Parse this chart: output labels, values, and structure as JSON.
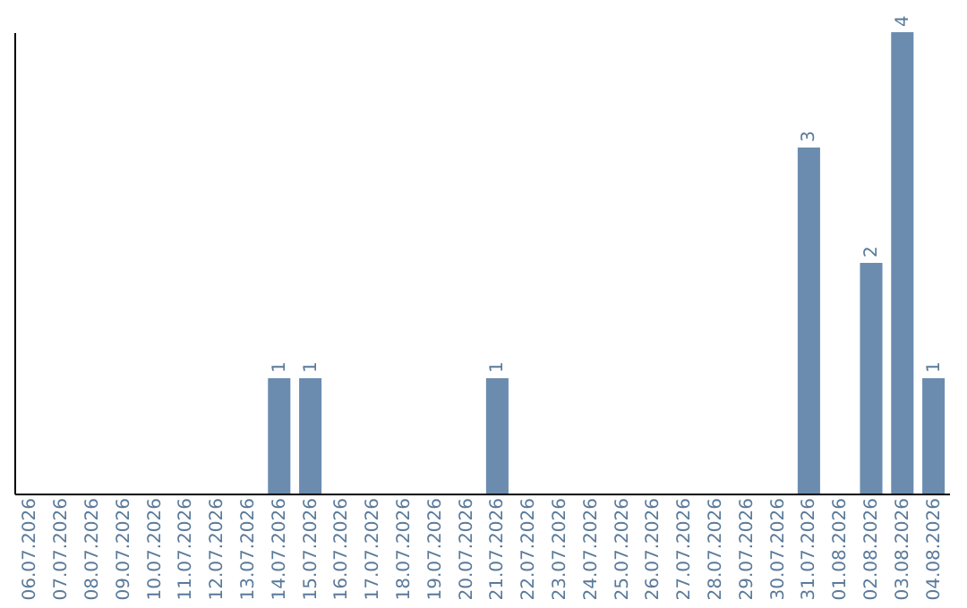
{
  "chart_data": {
    "type": "bar",
    "categories": [
      "06.07.2026",
      "07.07.2026",
      "08.07.2026",
      "09.07.2026",
      "10.07.2026",
      "11.07.2026",
      "12.07.2026",
      "13.07.2026",
      "14.07.2026",
      "15.07.2026",
      "16.07.2026",
      "17.07.2026",
      "18.07.2026",
      "19.07.2026",
      "20.07.2026",
      "21.07.2026",
      "22.07.2026",
      "23.07.2026",
      "24.07.2026",
      "25.07.2026",
      "26.07.2026",
      "27.07.2026",
      "28.07.2026",
      "29.07.2026",
      "30.07.2026",
      "31.07.2026",
      "01.08.2026",
      "02.08.2026",
      "03.08.2026",
      "04.08.2026"
    ],
    "values": [
      0,
      0,
      0,
      0,
      0,
      0,
      0,
      0,
      1,
      1,
      0,
      0,
      0,
      0,
      0,
      1,
      0,
      0,
      0,
      0,
      0,
      0,
      0,
      0,
      0,
      3,
      0,
      2,
      4,
      1
    ],
    "value_labels": [
      null,
      null,
      null,
      null,
      null,
      null,
      null,
      null,
      "1",
      "1",
      null,
      null,
      null,
      null,
      null,
      "1",
      null,
      null,
      null,
      null,
      null,
      null,
      null,
      null,
      null,
      "3",
      null,
      "2",
      "4",
      "1"
    ],
    "color": "#6b8caf",
    "tick_labels": "x",
    "grid": false
  }
}
